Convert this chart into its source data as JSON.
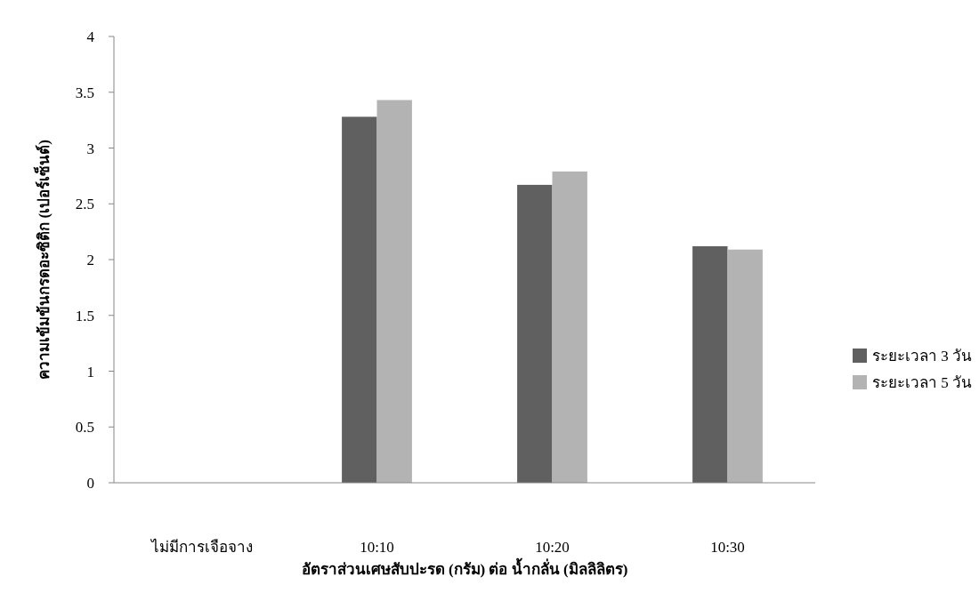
{
  "chart_data": {
    "type": "bar",
    "xlabel": "อัตราส่วนเศษสับปะรด (กรัม) ต่อ น้ำกลั่น (มิลลิลิตร)",
    "ylabel": "ความเข้มข้นกรดอะซิติก (เปอร์เซ็นต์)",
    "categories": [
      "ไม่มีการเจือจาง",
      "10:10",
      "10:20",
      "10:30"
    ],
    "series": [
      {
        "name": "ระยะเวลา 3 วัน",
        "color": "#606060",
        "values": [
          0,
          3.28,
          2.67,
          2.12
        ]
      },
      {
        "name": "ระยะเวลา 5 วัน",
        "color": "#b3b3b3",
        "values": [
          0,
          3.43,
          2.79,
          2.09
        ]
      }
    ],
    "ylim": [
      0,
      4
    ],
    "yticks": [
      0,
      0.5,
      1,
      1.5,
      2,
      2.5,
      3,
      3.5,
      4
    ],
    "grid": false,
    "legend": "right"
  }
}
